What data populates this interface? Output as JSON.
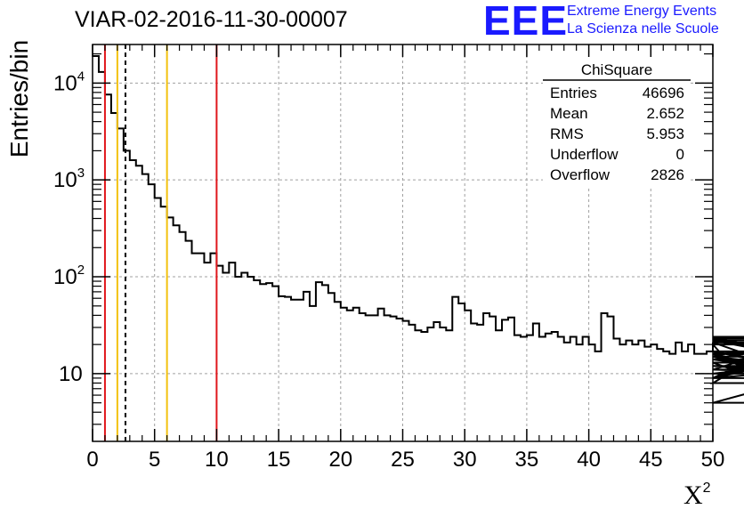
{
  "header": {
    "title": "VIAR-02-2016-11-30-00007",
    "logo_text": "EEE",
    "logo_line1": "Extreme Energy Events",
    "logo_line2": "La Scienza nelle Scuole"
  },
  "stats": {
    "name": "ChiSquare",
    "rows": [
      {
        "label": "Entries",
        "value": "46696"
      },
      {
        "label": "Mean",
        "value": "2.652"
      },
      {
        "label": "RMS",
        "value": "5.953"
      },
      {
        "label": "Underflow",
        "value": "0"
      },
      {
        "label": "Overflow",
        "value": "2826"
      }
    ]
  },
  "colors": {
    "red_line": "#e0161b",
    "yellow_line": "#f2c10f",
    "grid": "#a0a0a0",
    "logo": "#1a1aff"
  },
  "chart_data": {
    "type": "histogram",
    "title": "VIAR-02-2016-11-30-00007",
    "xlabel": "X",
    "xlabel_sup": "2",
    "ylabel": "Entries/bin",
    "xlim": [
      0,
      50
    ],
    "ylim": [
      2,
      25000
    ],
    "yscale": "log",
    "bin_width": 0.5,
    "x_ticks": [
      0,
      5,
      10,
      15,
      20,
      25,
      30,
      35,
      40,
      45,
      50
    ],
    "x_tick_labels": [
      "0",
      "5",
      "10",
      "15",
      "20",
      "25",
      "30",
      "35",
      "40",
      "45",
      "50"
    ],
    "y_ticks": [
      {
        "value": 10,
        "base": "10",
        "exp": ""
      },
      {
        "value": 100,
        "base": "10",
        "exp": "2"
      },
      {
        "value": 1000,
        "base": "10",
        "exp": "3"
      },
      {
        "value": 10000,
        "base": "10",
        "exp": "4"
      }
    ],
    "values": [
      19000,
      13000,
      7600,
      4900,
      3400,
      2000,
      1600,
      1400,
      1150,
      900,
      650,
      530,
      410,
      340,
      290,
      235,
      175,
      175,
      140,
      175,
      130,
      110,
      140,
      100,
      110,
      100,
      92,
      84,
      86,
      80,
      63,
      62,
      58,
      58,
      70,
      50,
      88,
      82,
      68,
      55,
      48,
      45,
      48,
      42,
      40,
      40,
      47,
      40,
      39,
      37,
      35,
      32,
      28,
      27,
      30,
      34,
      30,
      28,
      62,
      53,
      45,
      33,
      32,
      42,
      39,
      28,
      36,
      38,
      25,
      24,
      25,
      33,
      24,
      26,
      27,
      24,
      21,
      24,
      20,
      24,
      20,
      17,
      42,
      39,
      23,
      20,
      22,
      20,
      22,
      19,
      20,
      18,
      17,
      16,
      21,
      17,
      20,
      16,
      16,
      17,
      20,
      17,
      15,
      15,
      17,
      15,
      13,
      9,
      16,
      9,
      17,
      8,
      23,
      17,
      11,
      22,
      14,
      22,
      15,
      11,
      10,
      14,
      9,
      12,
      9,
      24,
      9,
      21,
      5,
      16,
      20
    ],
    "vlines": [
      {
        "x": 1.0,
        "color": "red",
        "style": "solid"
      },
      {
        "x": 2.0,
        "color": "yellow",
        "style": "solid"
      },
      {
        "x": 2.652,
        "color": "black",
        "style": "dashed"
      },
      {
        "x": 6.0,
        "color": "yellow",
        "style": "solid"
      },
      {
        "x": 10.0,
        "color": "red",
        "style": "solid"
      }
    ]
  }
}
